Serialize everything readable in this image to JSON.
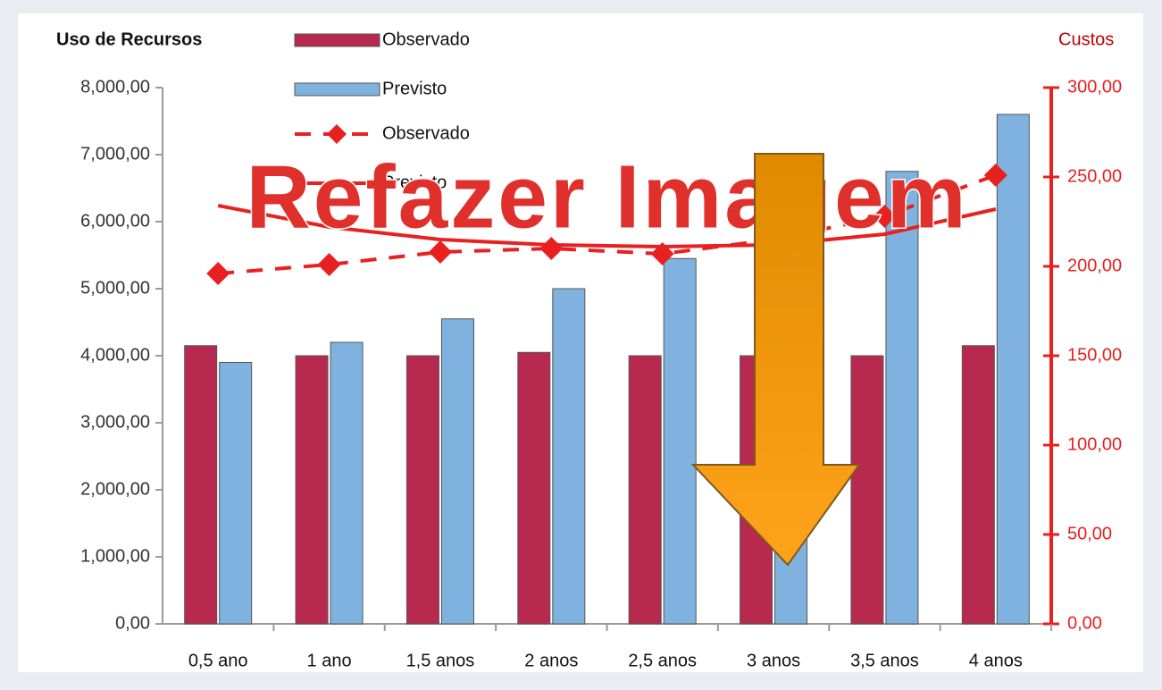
{
  "chart_data": {
    "type": "bar",
    "title": "Uso de Recursos",
    "y2_label": "Custos",
    "stamp": "Refazer Imagem",
    "categories": [
      "0,5 ano",
      "1 ano",
      "1,5 anos",
      "2 anos",
      "2,5 anos",
      "3 anos",
      "3,5 anos",
      "4 anos"
    ],
    "series": [
      {
        "name": "Observado",
        "type": "bar",
        "color": "#b8294f",
        "values": [
          4150,
          4000,
          4000,
          4050,
          4000,
          4000,
          4000,
          4150
        ]
      },
      {
        "name": "Previsto",
        "type": "bar",
        "color": "#7fb2de",
        "values": [
          3900,
          4200,
          4550,
          5000,
          5450,
          6100,
          6750,
          7600
        ]
      },
      {
        "name": "Observado",
        "type": "line",
        "axis": "y2",
        "color": "#e82020",
        "dashed": true,
        "marker": "diamond",
        "values": [
          196,
          201,
          208,
          210,
          207,
          215,
          228,
          251
        ]
      },
      {
        "name": "Previsto",
        "type": "line",
        "axis": "y2",
        "color": "#e82020",
        "dashed": false,
        "values": [
          234,
          222,
          215,
          212,
          211,
          212,
          218,
          232
        ]
      }
    ],
    "ylim": [
      0,
      8000
    ],
    "yticks": [
      {
        "value": 0,
        "label": "0,00"
      },
      {
        "value": 1000,
        "label": "1,000,00"
      },
      {
        "value": 2000,
        "label": "2,000,00"
      },
      {
        "value": 3000,
        "label": "3,000,00"
      },
      {
        "value": 4000,
        "label": "4,000,00"
      },
      {
        "value": 5000,
        "label": "5,000,00"
      },
      {
        "value": 6000,
        "label": "6,000,00"
      },
      {
        "value": 7000,
        "label": "7,000,00"
      },
      {
        "value": 8000,
        "label": "8,000,00"
      }
    ],
    "y2lim": [
      0,
      300
    ],
    "y2ticks": [
      {
        "value": 0,
        "label": "0,00"
      },
      {
        "value": 50,
        "label": "50,00"
      },
      {
        "value": 100,
        "label": "100,00"
      },
      {
        "value": 150,
        "label": "150,00"
      },
      {
        "value": 200,
        "label": "200,00"
      },
      {
        "value": 250,
        "label": "250,00"
      },
      {
        "value": 300,
        "label": "300,00"
      }
    ],
    "y2color": "#e82020"
  }
}
